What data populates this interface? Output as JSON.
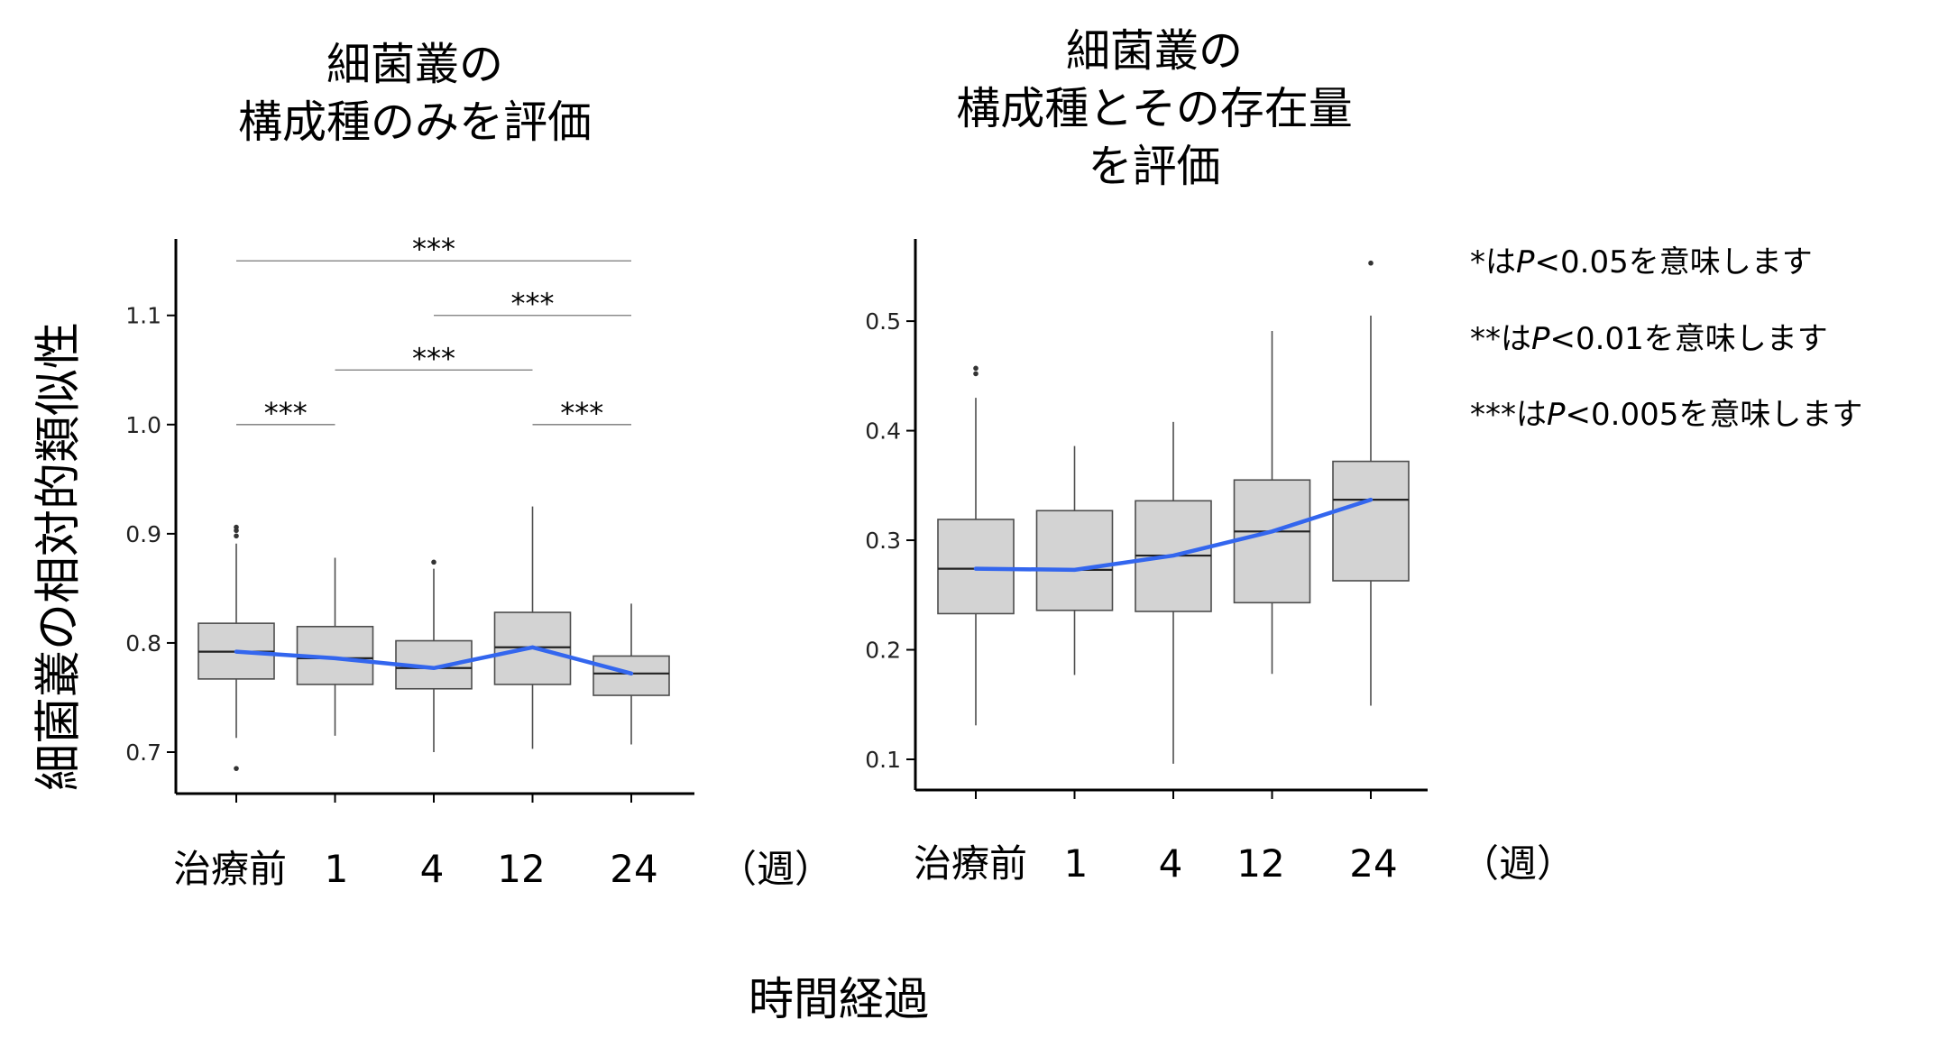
{
  "y_axis_label": "細菌叢の相対的類似性",
  "x_axis_label": "時間経過",
  "unit_label": "（週）",
  "legend": [
    {
      "stars": "*",
      "mid": "は",
      "p": "P",
      "tail": "<0.05を意味します"
    },
    {
      "stars": "**",
      "mid": "は",
      "p": "P",
      "tail": "<0.01を意味します"
    },
    {
      "stars": "***",
      "mid": "は",
      "p": "P",
      "tail": "<0.005を意味します"
    }
  ],
  "colors": {
    "box_fill": "#d3d3d3",
    "box_stroke": "#4d4d4d",
    "trend": "#3366ee",
    "axis": "#000000"
  },
  "chart_data": [
    {
      "type": "boxplot",
      "title": "細菌叢の\n構成種のみを評価",
      "categories": [
        "治療前",
        "1",
        "4",
        "12",
        "24"
      ],
      "ylim": [
        0.662,
        1.17
      ],
      "yticks": [
        0.7,
        0.8,
        0.9,
        1.0,
        1.1
      ],
      "ytick_labels": [
        "0.7",
        "0.8",
        "0.9",
        "1.0",
        "1.1"
      ],
      "boxes": [
        {
          "whislo": 0.713,
          "q1": 0.767,
          "med": 0.792,
          "q3": 0.818,
          "whishi": 0.891,
          "fliers": [
            0.685,
            0.898,
            0.903,
            0.906
          ]
        },
        {
          "whislo": 0.715,
          "q1": 0.762,
          "med": 0.786,
          "q3": 0.815,
          "whishi": 0.878,
          "fliers": []
        },
        {
          "whislo": 0.7,
          "q1": 0.758,
          "med": 0.777,
          "q3": 0.802,
          "whishi": 0.868,
          "fliers": [
            0.874
          ]
        },
        {
          "whislo": 0.703,
          "q1": 0.762,
          "med": 0.796,
          "q3": 0.828,
          "whishi": 0.925,
          "fliers": []
        },
        {
          "whislo": 0.707,
          "q1": 0.752,
          "med": 0.772,
          "q3": 0.788,
          "whishi": 0.836,
          "fliers": []
        }
      ],
      "trend": [
        0.792,
        0.786,
        0.777,
        0.796,
        0.772
      ],
      "significance": [
        {
          "from": 0,
          "to": 4,
          "y": 1.15,
          "label": "***"
        },
        {
          "from": 2,
          "to": 4,
          "y": 1.1,
          "label": "***"
        },
        {
          "from": 1,
          "to": 3,
          "y": 1.05,
          "label": "***"
        },
        {
          "from": 0,
          "to": 1,
          "y": 1.0,
          "label": "***"
        },
        {
          "from": 3,
          "to": 4,
          "y": 1.0,
          "label": "***"
        }
      ]
    },
    {
      "type": "boxplot",
      "title": "細菌叢の\n構成種とその存在量\nを評価",
      "categories": [
        "治療前",
        "1",
        "4",
        "12",
        "24"
      ],
      "ylim": [
        0.072,
        0.575
      ],
      "yticks": [
        0.1,
        0.2,
        0.3,
        0.4,
        0.5
      ],
      "ytick_labels": [
        "0.1",
        "0.2",
        "0.3",
        "0.4",
        "0.5"
      ],
      "boxes": [
        {
          "whislo": 0.131,
          "q1": 0.233,
          "med": 0.274,
          "q3": 0.319,
          "whishi": 0.43,
          "fliers": [
            0.452,
            0.457
          ]
        },
        {
          "whislo": 0.177,
          "q1": 0.236,
          "med": 0.273,
          "q3": 0.327,
          "whishi": 0.386,
          "fliers": []
        },
        {
          "whislo": 0.096,
          "q1": 0.235,
          "med": 0.286,
          "q3": 0.336,
          "whishi": 0.408,
          "fliers": []
        },
        {
          "whislo": 0.178,
          "q1": 0.243,
          "med": 0.308,
          "q3": 0.355,
          "whishi": 0.491,
          "fliers": []
        },
        {
          "whislo": 0.149,
          "q1": 0.263,
          "med": 0.337,
          "q3": 0.372,
          "whishi": 0.505,
          "fliers": [
            0.553
          ]
        }
      ],
      "trend": [
        0.274,
        0.273,
        0.286,
        0.308,
        0.337
      ],
      "significance": []
    }
  ]
}
